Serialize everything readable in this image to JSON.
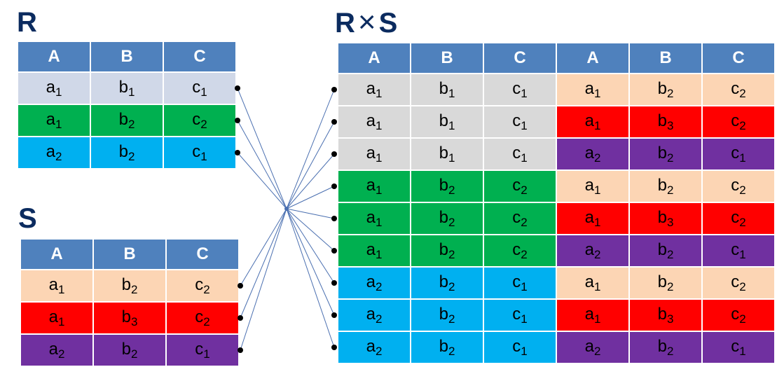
{
  "titles": {
    "r": "R",
    "s": "S",
    "product_left": "R",
    "product_op": "×",
    "product_right": "S"
  },
  "header_color": "#4f81bd",
  "r_table": {
    "columns": [
      "A",
      "B",
      "C"
    ],
    "rows": [
      {
        "color": "#d0d8e8",
        "cells": [
          [
            "a",
            "1"
          ],
          [
            "b",
            "1"
          ],
          [
            "c",
            "1"
          ]
        ]
      },
      {
        "color": "#00b050",
        "cells": [
          [
            "a",
            "1"
          ],
          [
            "b",
            "2"
          ],
          [
            "c",
            "2"
          ]
        ]
      },
      {
        "color": "#00b0f0",
        "cells": [
          [
            "a",
            "2"
          ],
          [
            "b",
            "2"
          ],
          [
            "c",
            "1"
          ]
        ]
      }
    ]
  },
  "s_table": {
    "columns": [
      "A",
      "B",
      "C"
    ],
    "rows": [
      {
        "color": "#fcd5b4",
        "cells": [
          [
            "a",
            "1"
          ],
          [
            "b",
            "2"
          ],
          [
            "c",
            "2"
          ]
        ]
      },
      {
        "color": "#ff0000",
        "cells": [
          [
            "a",
            "1"
          ],
          [
            "b",
            "3"
          ],
          [
            "c",
            "2"
          ]
        ]
      },
      {
        "color": "#7030a0",
        "cells": [
          [
            "a",
            "2"
          ],
          [
            "b",
            "2"
          ],
          [
            "c",
            "1"
          ]
        ]
      }
    ]
  },
  "product_table": {
    "columns": [
      "A",
      "B",
      "C",
      "A",
      "B",
      "C"
    ],
    "rows": [
      {
        "left_color": "#d9d9d9",
        "right_color": "#fcd5b4",
        "cells": [
          [
            "a",
            "1"
          ],
          [
            "b",
            "1"
          ],
          [
            "c",
            "1"
          ],
          [
            "a",
            "1"
          ],
          [
            "b",
            "2"
          ],
          [
            "c",
            "2"
          ]
        ]
      },
      {
        "left_color": "#d9d9d9",
        "right_color": "#ff0000",
        "cells": [
          [
            "a",
            "1"
          ],
          [
            "b",
            "1"
          ],
          [
            "c",
            "1"
          ],
          [
            "a",
            "1"
          ],
          [
            "b",
            "3"
          ],
          [
            "c",
            "2"
          ]
        ]
      },
      {
        "left_color": "#d9d9d9",
        "right_color": "#7030a0",
        "cells": [
          [
            "a",
            "1"
          ],
          [
            "b",
            "1"
          ],
          [
            "c",
            "1"
          ],
          [
            "a",
            "2"
          ],
          [
            "b",
            "2"
          ],
          [
            "c",
            "1"
          ]
        ]
      },
      {
        "left_color": "#00b050",
        "right_color": "#fcd5b4",
        "cells": [
          [
            "a",
            "1"
          ],
          [
            "b",
            "2"
          ],
          [
            "c",
            "2"
          ],
          [
            "a",
            "1"
          ],
          [
            "b",
            "2"
          ],
          [
            "c",
            "2"
          ]
        ]
      },
      {
        "left_color": "#00b050",
        "right_color": "#ff0000",
        "cells": [
          [
            "a",
            "1"
          ],
          [
            "b",
            "2"
          ],
          [
            "c",
            "2"
          ],
          [
            "a",
            "1"
          ],
          [
            "b",
            "3"
          ],
          [
            "c",
            "2"
          ]
        ]
      },
      {
        "left_color": "#00b050",
        "right_color": "#7030a0",
        "cells": [
          [
            "a",
            "1"
          ],
          [
            "b",
            "2"
          ],
          [
            "c",
            "2"
          ],
          [
            "a",
            "2"
          ],
          [
            "b",
            "2"
          ],
          [
            "c",
            "1"
          ]
        ]
      },
      {
        "left_color": "#00b0f0",
        "right_color": "#fcd5b4",
        "cells": [
          [
            "a",
            "2"
          ],
          [
            "b",
            "2"
          ],
          [
            "c",
            "1"
          ],
          [
            "a",
            "1"
          ],
          [
            "b",
            "2"
          ],
          [
            "c",
            "2"
          ]
        ]
      },
      {
        "left_color": "#00b0f0",
        "right_color": "#ff0000",
        "cells": [
          [
            "a",
            "2"
          ],
          [
            "b",
            "2"
          ],
          [
            "c",
            "1"
          ],
          [
            "a",
            "1"
          ],
          [
            "b",
            "3"
          ],
          [
            "c",
            "2"
          ]
        ]
      },
      {
        "left_color": "#00b0f0",
        "right_color": "#7030a0",
        "cells": [
          [
            "a",
            "2"
          ],
          [
            "b",
            "2"
          ],
          [
            "c",
            "1"
          ],
          [
            "a",
            "2"
          ],
          [
            "b",
            "2"
          ],
          [
            "c",
            "1"
          ]
        ]
      }
    ]
  },
  "link_color": "#4a6fb0"
}
